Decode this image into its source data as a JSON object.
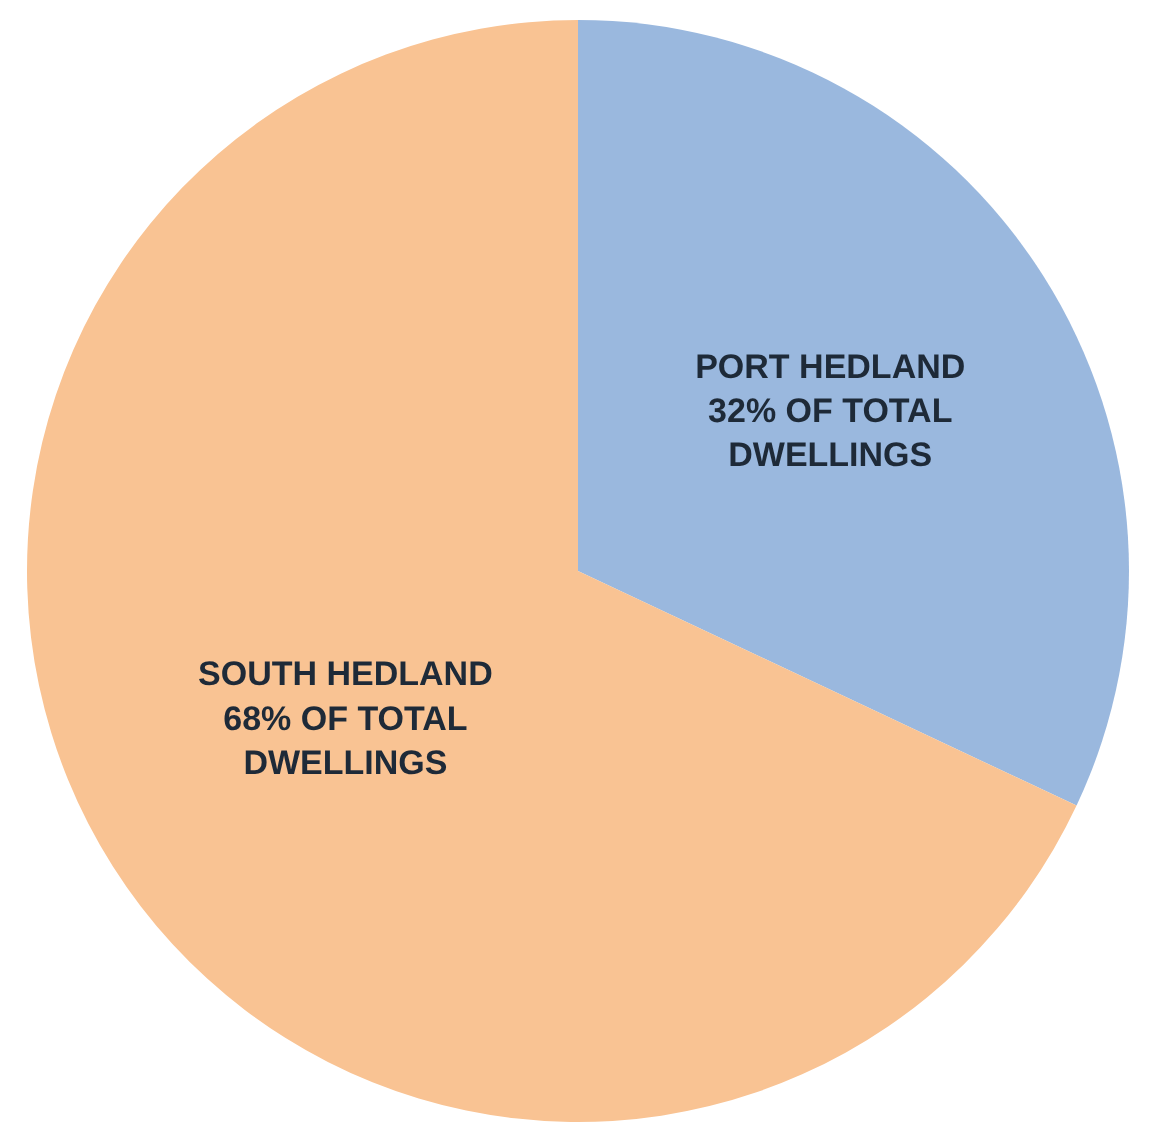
{
  "chart_data": {
    "type": "pie",
    "categories": [
      "PORT HEDLAND",
      "SOUTH HEDLAND"
    ],
    "values": [
      32,
      68
    ],
    "value_labels": [
      "32% OF TOTAL\nDWELLINGS",
      "68% OF TOTAL\nDWELLINGS"
    ],
    "colors": [
      "#9ab8de",
      "#f9c393"
    ],
    "legend": false
  }
}
